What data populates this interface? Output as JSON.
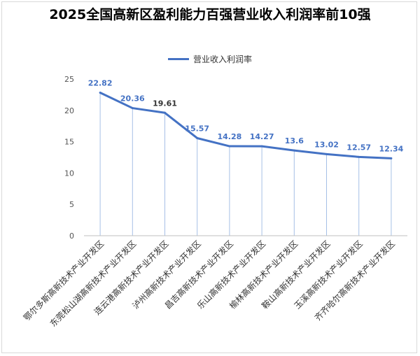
{
  "chart_data": {
    "type": "line",
    "title": "2025全国高新区盈利能力百强营业收入利润率前10强",
    "series": [
      {
        "name": "营业收入利润率",
        "color": "#4472C4",
        "values": [
          22.82,
          20.36,
          19.61,
          15.57,
          14.28,
          14.27,
          13.6,
          13.02,
          12.57,
          12.34
        ]
      }
    ],
    "categories": [
      "鄂尔多斯高新技术产业开发区",
      "东莞松山湖高新技术产业开发区",
      "连云港高新技术产业开发区",
      "泸州高新技术产业开发区",
      "昌吉高新技术产业开发区",
      "乐山高新技术产业开发区",
      "榆林高新技术产业开发区",
      "鞍山高新技术产业开发区",
      "玉溪高新技术产业开发区",
      "齐齐哈尔高新技术产业开发区"
    ],
    "data_labels": [
      "22.82",
      "20.36",
      "19.61",
      "15.57",
      "14.28",
      "14.27",
      "13.6",
      "13.02",
      "12.57",
      "12.34"
    ],
    "label_colors": [
      "#4472C4",
      "#4472C4",
      "#333333",
      "#4472C4",
      "#4472C4",
      "#4472C4",
      "#4472C4",
      "#4472C4",
      "#4472C4",
      "#4472C4"
    ],
    "yticks": [
      "0",
      "5",
      "10",
      "15",
      "20",
      "25"
    ],
    "ylim": [
      0,
      25
    ],
    "drop_lines": true,
    "grid": false,
    "legend_position": "top",
    "xlabel": "",
    "ylabel": ""
  }
}
